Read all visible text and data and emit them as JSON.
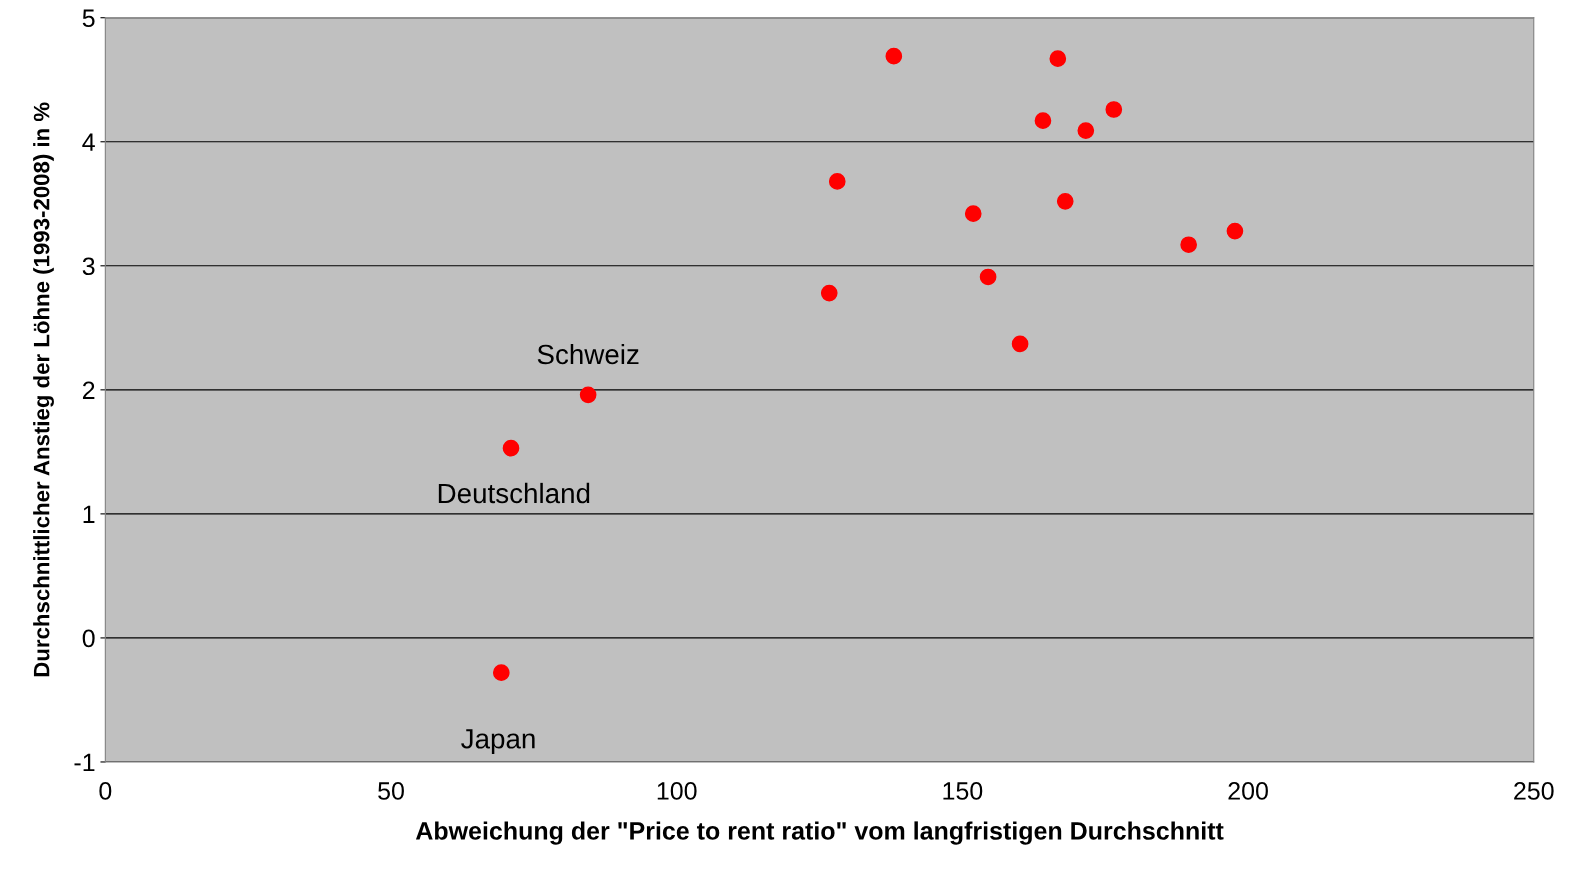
{
  "chart_data": {
    "type": "scatter",
    "xlabel": "Abweichung der \"Price to rent ratio\" vom langfristigen Durchschnitt",
    "ylabel": "Durchschnittlicher Anstieg der Löhne (1993-2008) in %",
    "x": [
      138.0,
      166.7,
      176.5,
      164.1,
      171.6,
      128.1,
      151.9,
      168.0,
      189.6,
      197.7,
      154.5,
      126.7,
      160.1,
      84.5,
      71.0,
      69.3
    ],
    "values": [
      4.69,
      4.67,
      4.26,
      4.17,
      4.09,
      3.68,
      3.42,
      3.52,
      3.17,
      3.28,
      2.91,
      2.78,
      2.37,
      1.96,
      1.53,
      -0.28
    ],
    "color": "#ff0000",
    "marker": "circle",
    "xlim": [
      0,
      250
    ],
    "xticks": [
      0,
      50,
      100,
      150,
      200,
      250
    ],
    "ylim": [
      -1,
      5
    ],
    "yticks": [
      -1,
      0,
      1,
      2,
      3,
      4,
      5
    ],
    "grid": "y",
    "legend": false,
    "annotations": [
      {
        "text": "Schweiz",
        "x": 84.5,
        "y": 1.96
      },
      {
        "text": "Deutschland",
        "x": 71.0,
        "y": 1.53
      },
      {
        "text": "Japan",
        "x": 69.3,
        "y": -0.28
      }
    ]
  }
}
